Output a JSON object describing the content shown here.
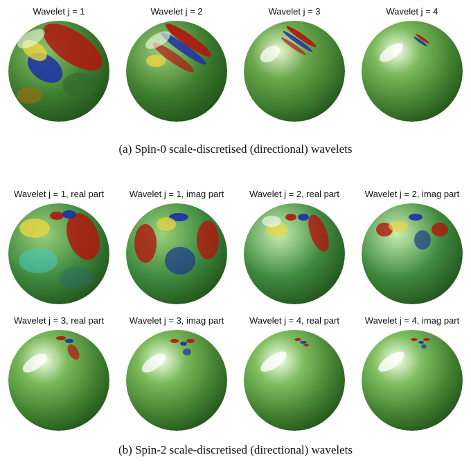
{
  "figure": {
    "row_a": {
      "panels": [
        {
          "title": "Wavelet j = 1"
        },
        {
          "title": "Wavelet j = 2"
        },
        {
          "title": "Wavelet j = 3"
        },
        {
          "title": "Wavelet j = 4"
        }
      ],
      "caption": "(a) Spin-0 scale-discretised (directional) wavelets"
    },
    "row_b": {
      "panels": [
        {
          "title": "Wavelet j = 1, real part"
        },
        {
          "title": "Wavelet j = 1, imag part"
        },
        {
          "title": "Wavelet j = 2, real part"
        },
        {
          "title": "Wavelet j = 2, imag part"
        },
        {
          "title": "Wavelet j = 3, real part"
        },
        {
          "title": "Wavelet j = 3, imag part"
        },
        {
          "title": "Wavelet j = 4, real part"
        },
        {
          "title": "Wavelet j = 4, imag part"
        }
      ],
      "caption": "(b) Spin-2 scale-discretised (directional) wavelets"
    }
  },
  "colors": {
    "sphere_base": "#3f7d2f",
    "sphere_dark": "#1f4d18",
    "positive": "#b0160f",
    "negative": "#1c2fa8",
    "highlight": "#f4ffe8",
    "yellow": "#e8d640",
    "cyan": "#3fd0d0"
  }
}
